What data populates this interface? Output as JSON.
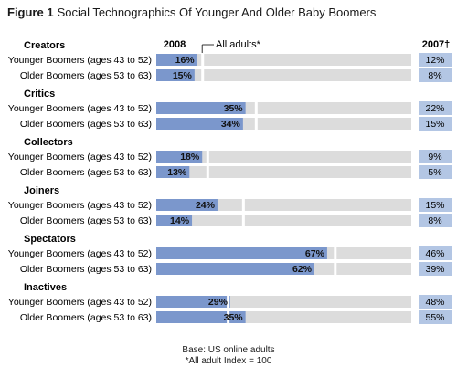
{
  "figure": {
    "label": "Figure 1",
    "title": "Social Technographics Of Younger And Older Baby Boomers"
  },
  "colors": {
    "bar": "#7b97cc",
    "track": "#dcdcdc",
    "index_box": "#b3c6e4",
    "accent": "#2e5aa8"
  },
  "chart_data": {
    "type": "bar",
    "orientation": "horizontal",
    "title": "",
    "xlabel": "",
    "ylabel": "",
    "xlim": [
      0,
      100
    ],
    "column_headers": {
      "year": "2008",
      "reference": "All adults*",
      "index": "2007†"
    },
    "groups": [
      {
        "name": "Creators",
        "all_adults": 18,
        "rows": [
          {
            "label": "Younger Boomers (ages 43 to 52)",
            "value": 16,
            "value_label": "16%",
            "index": "12%"
          },
          {
            "label": "Older Boomers (ages 53 to 63)",
            "value": 15,
            "value_label": "15%",
            "index": "8%"
          }
        ]
      },
      {
        "name": "Critics",
        "all_adults": 39,
        "rows": [
          {
            "label": "Younger Boomers (ages 43 to 52)",
            "value": 35,
            "value_label": "35%",
            "index": "22%"
          },
          {
            "label": "Older Boomers (ages 53 to 63)",
            "value": 34,
            "value_label": "34%",
            "index": "15%"
          }
        ]
      },
      {
        "name": "Collectors",
        "all_adults": 20,
        "rows": [
          {
            "label": "Younger Boomers (ages 43 to 52)",
            "value": 18,
            "value_label": "18%",
            "index": "9%"
          },
          {
            "label": "Older Boomers (ages 53 to 63)",
            "value": 13,
            "value_label": "13%",
            "index": "5%"
          }
        ]
      },
      {
        "name": "Joiners",
        "all_adults": 34,
        "rows": [
          {
            "label": "Younger Boomers (ages 43 to 52)",
            "value": 24,
            "value_label": "24%",
            "index": "15%"
          },
          {
            "label": "Older Boomers (ages 53 to 63)",
            "value": 14,
            "value_label": "14%",
            "index": "8%"
          }
        ]
      },
      {
        "name": "Spectators",
        "all_adults": 70,
        "rows": [
          {
            "label": "Younger Boomers (ages 43 to 52)",
            "value": 67,
            "value_label": "67%",
            "index": "46%"
          },
          {
            "label": "Older Boomers (ages 53 to 63)",
            "value": 62,
            "value_label": "62%",
            "index": "39%"
          }
        ]
      },
      {
        "name": "Inactives",
        "all_adults": 28,
        "rows": [
          {
            "label": "Younger Boomers (ages 43 to 52)",
            "value": 29,
            "value_label": "29%",
            "index": "48%"
          },
          {
            "label": "Older Boomers (ages 53 to 63)",
            "value": 35,
            "value_label": "35%",
            "index": "55%"
          }
        ]
      }
    ]
  },
  "footnote": {
    "base": "Base: US online adults",
    "index_note": "*All adult Index = 100"
  }
}
